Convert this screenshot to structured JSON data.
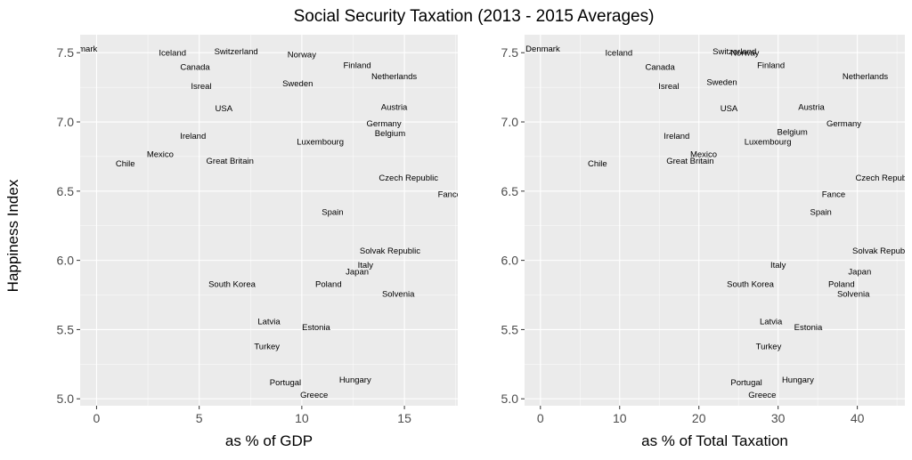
{
  "chart_data": [
    {
      "type": "scatter",
      "title": "Social Security Taxation (2013 - 2015 Averages)",
      "xlabel": "as % of GDP",
      "ylabel": "Happiness Index",
      "xlim": [
        -0.8,
        17.6
      ],
      "ylim": [
        4.95,
        7.63
      ],
      "xticks": [
        0,
        5,
        10,
        15
      ],
      "yticks": [
        5.0,
        5.5,
        6.0,
        6.5,
        7.0,
        7.5
      ],
      "grid": true,
      "points": [
        {
          "label": "Denmark",
          "x": -0.8,
          "y": 7.53
        },
        {
          "label": "Iceland",
          "x": 3.7,
          "y": 7.5
        },
        {
          "label": "Switzerland",
          "x": 6.8,
          "y": 7.51
        },
        {
          "label": "Norway",
          "x": 10.0,
          "y": 7.49
        },
        {
          "label": "Finland",
          "x": 12.7,
          "y": 7.41
        },
        {
          "label": "Canada",
          "x": 4.8,
          "y": 7.4
        },
        {
          "label": "Netherlands",
          "x": 14.5,
          "y": 7.33
        },
        {
          "label": "Sweden",
          "x": 9.8,
          "y": 7.28
        },
        {
          "label": "Isreal",
          "x": 5.1,
          "y": 7.26
        },
        {
          "label": "USA",
          "x": 6.2,
          "y": 7.1
        },
        {
          "label": "Austria",
          "x": 14.5,
          "y": 7.11
        },
        {
          "label": "Germany",
          "x": 14.0,
          "y": 6.99
        },
        {
          "label": "Belgium",
          "x": 14.3,
          "y": 6.92
        },
        {
          "label": "Ireland",
          "x": 4.7,
          "y": 6.9
        },
        {
          "label": "Luxembourg",
          "x": 10.9,
          "y": 6.86
        },
        {
          "label": "Mexico",
          "x": 3.1,
          "y": 6.77
        },
        {
          "label": "Chile",
          "x": 1.4,
          "y": 6.7
        },
        {
          "label": "Great Britain",
          "x": 6.5,
          "y": 6.72
        },
        {
          "label": "Czech Republic",
          "x": 15.2,
          "y": 6.6
        },
        {
          "label": "Fance",
          "x": 17.2,
          "y": 6.48
        },
        {
          "label": "Spain",
          "x": 11.5,
          "y": 6.35
        },
        {
          "label": "Solvak Republic",
          "x": 14.3,
          "y": 6.07
        },
        {
          "label": "Italy",
          "x": 13.1,
          "y": 5.97
        },
        {
          "label": "Japan",
          "x": 12.7,
          "y": 5.92
        },
        {
          "label": "South Korea",
          "x": 6.6,
          "y": 5.83
        },
        {
          "label": "Poland",
          "x": 11.3,
          "y": 5.83
        },
        {
          "label": "Solvenia",
          "x": 14.7,
          "y": 5.76
        },
        {
          "label": "Latvia",
          "x": 8.4,
          "y": 5.56
        },
        {
          "label": "Estonia",
          "x": 10.7,
          "y": 5.52
        },
        {
          "label": "Turkey",
          "x": 8.3,
          "y": 5.38
        },
        {
          "label": "Hungary",
          "x": 12.6,
          "y": 5.14
        },
        {
          "label": "Portugal",
          "x": 9.2,
          "y": 5.12
        },
        {
          "label": "Greece",
          "x": 10.6,
          "y": 5.03
        }
      ]
    },
    {
      "type": "scatter",
      "title": "",
      "xlabel": "as % of Total Taxation",
      "ylabel": "Happiness Index",
      "xlim": [
        -2,
        46
      ],
      "ylim": [
        4.95,
        7.63
      ],
      "xticks": [
        0,
        10,
        20,
        30,
        40
      ],
      "yticks": [
        5.0,
        5.5,
        6.0,
        6.5,
        7.0,
        7.5
      ],
      "grid": true,
      "points": [
        {
          "label": "Denmark",
          "x": 0.3,
          "y": 7.53
        },
        {
          "label": "Iceland",
          "x": 9.9,
          "y": 7.5
        },
        {
          "label": "Switzerland",
          "x": 24.5,
          "y": 7.51
        },
        {
          "label": "Norway",
          "x": 25.8,
          "y": 7.5
        },
        {
          "label": "Finland",
          "x": 29.1,
          "y": 7.41
        },
        {
          "label": "Canada",
          "x": 15.1,
          "y": 7.4
        },
        {
          "label": "Netherlands",
          "x": 41.0,
          "y": 7.33
        },
        {
          "label": "Sweden",
          "x": 22.9,
          "y": 7.29
        },
        {
          "label": "Isreal",
          "x": 16.2,
          "y": 7.26
        },
        {
          "label": "USA",
          "x": 23.8,
          "y": 7.1
        },
        {
          "label": "Austria",
          "x": 34.2,
          "y": 7.11
        },
        {
          "label": "Germany",
          "x": 38.3,
          "y": 6.99
        },
        {
          "label": "Belgium",
          "x": 31.8,
          "y": 6.93
        },
        {
          "label": "Ireland",
          "x": 17.2,
          "y": 6.9
        },
        {
          "label": "Luxembourg",
          "x": 28.7,
          "y": 6.86
        },
        {
          "label": "Mexico",
          "x": 20.6,
          "y": 6.77
        },
        {
          "label": "Chile",
          "x": 7.2,
          "y": 6.7
        },
        {
          "label": "Great Britain",
          "x": 18.9,
          "y": 6.72
        },
        {
          "label": "Czech Republic",
          "x": 43.5,
          "y": 6.6
        },
        {
          "label": "Fance",
          "x": 37.0,
          "y": 6.48
        },
        {
          "label": "Spain",
          "x": 35.4,
          "y": 6.35
        },
        {
          "label": "Solvak Republic",
          "x": 43.2,
          "y": 6.07
        },
        {
          "label": "Italy",
          "x": 30.0,
          "y": 5.97
        },
        {
          "label": "Japan",
          "x": 40.3,
          "y": 5.92
        },
        {
          "label": "South Korea",
          "x": 26.5,
          "y": 5.83
        },
        {
          "label": "Poland",
          "x": 38.0,
          "y": 5.83
        },
        {
          "label": "Solvenia",
          "x": 39.5,
          "y": 5.76
        },
        {
          "label": "Latvia",
          "x": 29.1,
          "y": 5.56
        },
        {
          "label": "Estonia",
          "x": 33.8,
          "y": 5.52
        },
        {
          "label": "Turkey",
          "x": 28.8,
          "y": 5.38
        },
        {
          "label": "Hungary",
          "x": 32.5,
          "y": 5.14
        },
        {
          "label": "Portugal",
          "x": 26.0,
          "y": 5.12
        },
        {
          "label": "Greece",
          "x": 28.0,
          "y": 5.03
        }
      ]
    }
  ]
}
